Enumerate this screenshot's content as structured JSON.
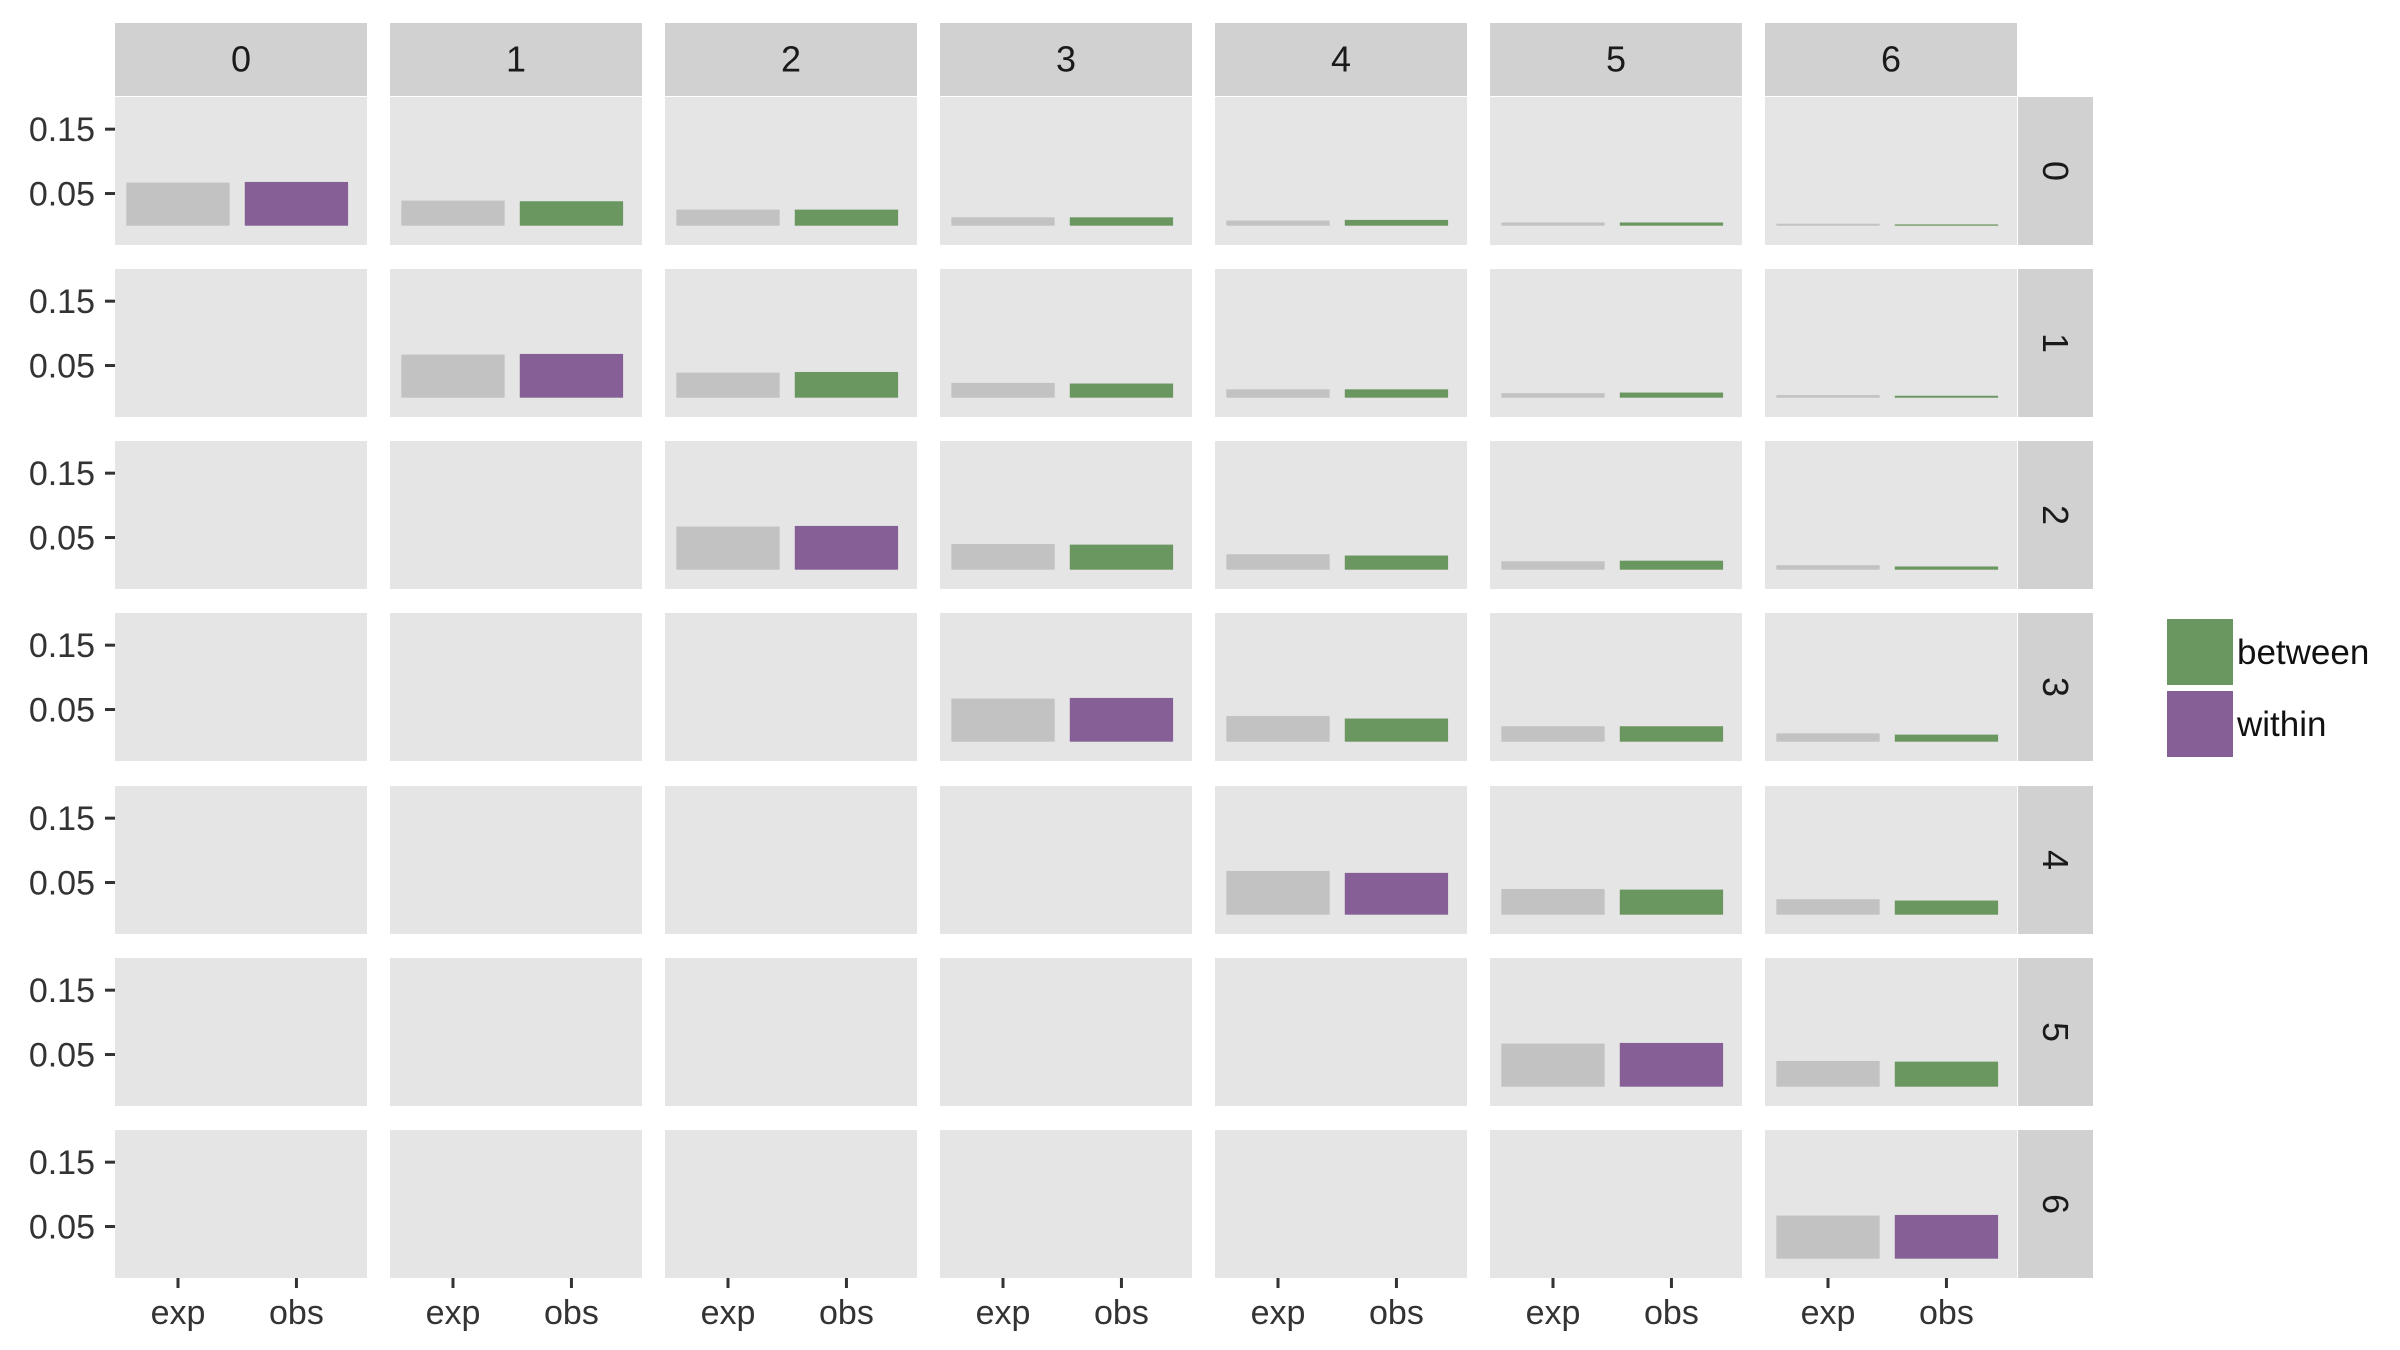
{
  "chart_data": {
    "type": "bar",
    "layout": "facet_grid",
    "title": "",
    "xlabel": "",
    "ylabel": "",
    "col_facets": [
      "0",
      "1",
      "2",
      "3",
      "4",
      "5",
      "6"
    ],
    "row_facets": [
      "0",
      "1",
      "2",
      "3",
      "4",
      "5",
      "6"
    ],
    "categories": [
      "exp",
      "obs"
    ],
    "y_ticks": [
      0.15,
      0.05
    ],
    "y_tick_labels": [
      "0.15",
      "0.05"
    ],
    "ylim": [
      -0.03,
      0.2
    ],
    "grid": true,
    "legend_position": "right",
    "legend": [
      {
        "label": "between",
        "color": "#6a9760"
      },
      {
        "label": "within",
        "color": "#855f96"
      }
    ],
    "colors": {
      "exp": "#c2c2c2",
      "between": "#6a9760",
      "within": "#855f96",
      "panel": "#e5e5e5",
      "strip": "#d1d1d1"
    },
    "cells": [
      {
        "row": "0",
        "col": "0",
        "exp": 0.067,
        "obs": 0.068,
        "type": "within"
      },
      {
        "row": "0",
        "col": "1",
        "exp": 0.039,
        "obs": 0.038,
        "type": "between"
      },
      {
        "row": "0",
        "col": "2",
        "exp": 0.025,
        "obs": 0.025,
        "type": "between"
      },
      {
        "row": "0",
        "col": "3",
        "exp": 0.013,
        "obs": 0.013,
        "type": "between"
      },
      {
        "row": "0",
        "col": "4",
        "exp": 0.008,
        "obs": 0.009,
        "type": "between"
      },
      {
        "row": "0",
        "col": "5",
        "exp": 0.005,
        "obs": 0.005,
        "type": "between"
      },
      {
        "row": "0",
        "col": "6",
        "exp": 0.003,
        "obs": 0.002,
        "type": "between"
      },
      {
        "row": "1",
        "col": "1",
        "exp": 0.067,
        "obs": 0.068,
        "type": "within"
      },
      {
        "row": "1",
        "col": "2",
        "exp": 0.039,
        "obs": 0.04,
        "type": "between"
      },
      {
        "row": "1",
        "col": "3",
        "exp": 0.023,
        "obs": 0.022,
        "type": "between"
      },
      {
        "row": "1",
        "col": "4",
        "exp": 0.013,
        "obs": 0.013,
        "type": "between"
      },
      {
        "row": "1",
        "col": "5",
        "exp": 0.007,
        "obs": 0.008,
        "type": "between"
      },
      {
        "row": "1",
        "col": "6",
        "exp": 0.004,
        "obs": 0.003,
        "type": "between"
      },
      {
        "row": "2",
        "col": "2",
        "exp": 0.067,
        "obs": 0.068,
        "type": "within"
      },
      {
        "row": "2",
        "col": "3",
        "exp": 0.04,
        "obs": 0.039,
        "type": "between"
      },
      {
        "row": "2",
        "col": "4",
        "exp": 0.024,
        "obs": 0.022,
        "type": "between"
      },
      {
        "row": "2",
        "col": "5",
        "exp": 0.013,
        "obs": 0.014,
        "type": "between"
      },
      {
        "row": "2",
        "col": "6",
        "exp": 0.007,
        "obs": 0.005,
        "type": "between"
      },
      {
        "row": "3",
        "col": "3",
        "exp": 0.067,
        "obs": 0.068,
        "type": "within"
      },
      {
        "row": "3",
        "col": "4",
        "exp": 0.04,
        "obs": 0.036,
        "type": "between"
      },
      {
        "row": "3",
        "col": "5",
        "exp": 0.024,
        "obs": 0.024,
        "type": "between"
      },
      {
        "row": "3",
        "col": "6",
        "exp": 0.013,
        "obs": 0.011,
        "type": "between"
      },
      {
        "row": "4",
        "col": "4",
        "exp": 0.068,
        "obs": 0.065,
        "type": "within"
      },
      {
        "row": "4",
        "col": "5",
        "exp": 0.04,
        "obs": 0.039,
        "type": "between"
      },
      {
        "row": "4",
        "col": "6",
        "exp": 0.024,
        "obs": 0.022,
        "type": "between"
      },
      {
        "row": "5",
        "col": "5",
        "exp": 0.067,
        "obs": 0.068,
        "type": "within"
      },
      {
        "row": "5",
        "col": "6",
        "exp": 0.04,
        "obs": 0.039,
        "type": "between"
      },
      {
        "row": "6",
        "col": "6",
        "exp": 0.067,
        "obs": 0.068,
        "type": "within"
      }
    ]
  }
}
